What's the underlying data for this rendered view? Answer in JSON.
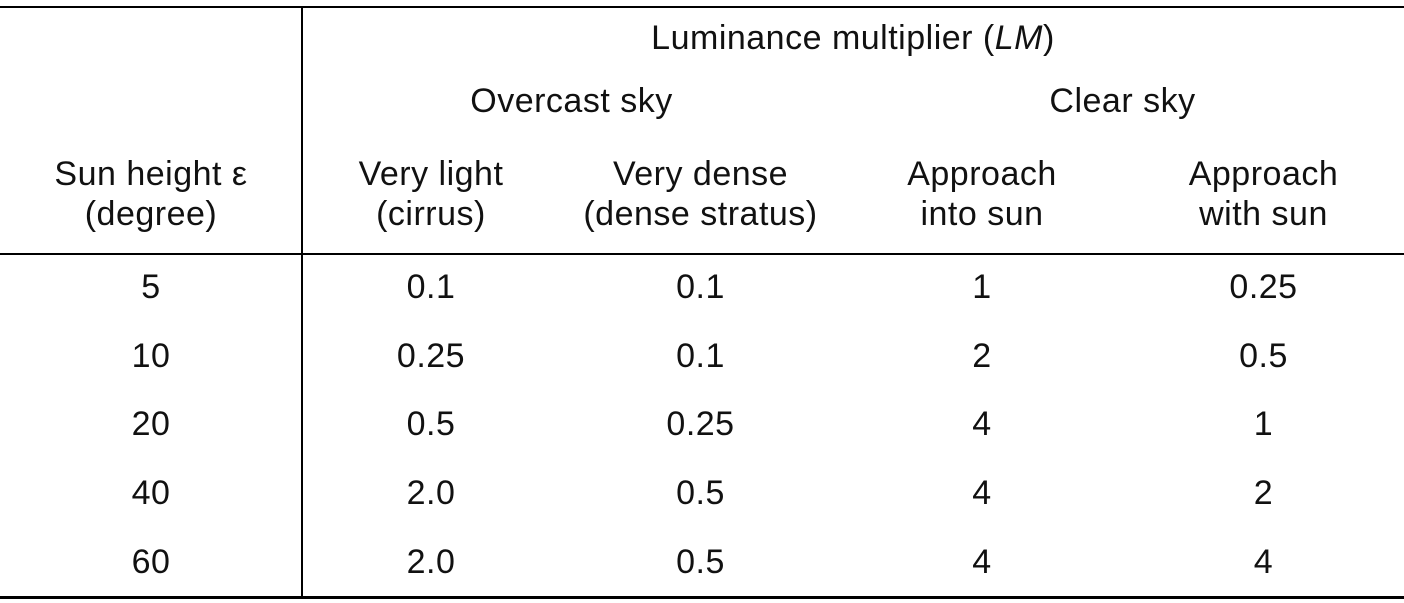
{
  "table": {
    "title": {
      "prefix": "Luminance multiplier (",
      "symbol": "LM",
      "suffix": ")"
    },
    "group_headers": {
      "overcast": "Overcast sky",
      "clear": "Clear sky"
    },
    "column_headers": {
      "sun_height": {
        "line1": "Sun height ε",
        "line2": "(degree)"
      },
      "very_light": {
        "line1": "Very light",
        "line2": "(cirrus)"
      },
      "very_dense": {
        "line1": "Very dense",
        "line2": "(dense stratus)"
      },
      "approach_into_sun": {
        "line1": "Approach",
        "line2": "into sun"
      },
      "approach_with_sun": {
        "line1": "Approach",
        "line2": "with sun"
      }
    },
    "rows": [
      {
        "sun_height": "5",
        "very_light": "0.1",
        "very_dense": "0.1",
        "approach_into_sun": "1",
        "approach_with_sun": "0.25"
      },
      {
        "sun_height": "10",
        "very_light": "0.25",
        "very_dense": "0.1",
        "approach_into_sun": "2",
        "approach_with_sun": "0.5"
      },
      {
        "sun_height": "20",
        "very_light": "0.5",
        "very_dense": "0.25",
        "approach_into_sun": "4",
        "approach_with_sun": "1"
      },
      {
        "sun_height": "40",
        "very_light": "2.0",
        "very_dense": "0.5",
        "approach_into_sun": "4",
        "approach_with_sun": "2"
      },
      {
        "sun_height": "60",
        "very_light": "2.0",
        "very_dense": "0.5",
        "approach_into_sun": "4",
        "approach_with_sun": "4"
      }
    ],
    "colors": {
      "text": "#111111",
      "rule": "#000000",
      "background": "#ffffff"
    }
  },
  "chart_data": {
    "type": "table",
    "title": "Luminance multiplier (LM)",
    "column_groups": [
      {
        "label": "",
        "columns": [
          "Sun height ε (degree)"
        ]
      },
      {
        "label": "Overcast sky",
        "columns": [
          "Very light (cirrus)",
          "Very dense (dense stratus)"
        ]
      },
      {
        "label": "Clear sky",
        "columns": [
          "Approach into sun",
          "Approach with sun"
        ]
      }
    ],
    "categories": [
      "5",
      "10",
      "20",
      "40",
      "60"
    ],
    "series": [
      {
        "name": "Very light (cirrus)",
        "values": [
          0.1,
          0.25,
          0.5,
          2.0,
          2.0
        ]
      },
      {
        "name": "Very dense (dense stratus)",
        "values": [
          0.1,
          0.1,
          0.25,
          0.5,
          0.5
        ]
      },
      {
        "name": "Approach into sun",
        "values": [
          1,
          2,
          4,
          4,
          4
        ]
      },
      {
        "name": "Approach with sun",
        "values": [
          0.25,
          0.5,
          1,
          2,
          4
        ]
      }
    ]
  }
}
